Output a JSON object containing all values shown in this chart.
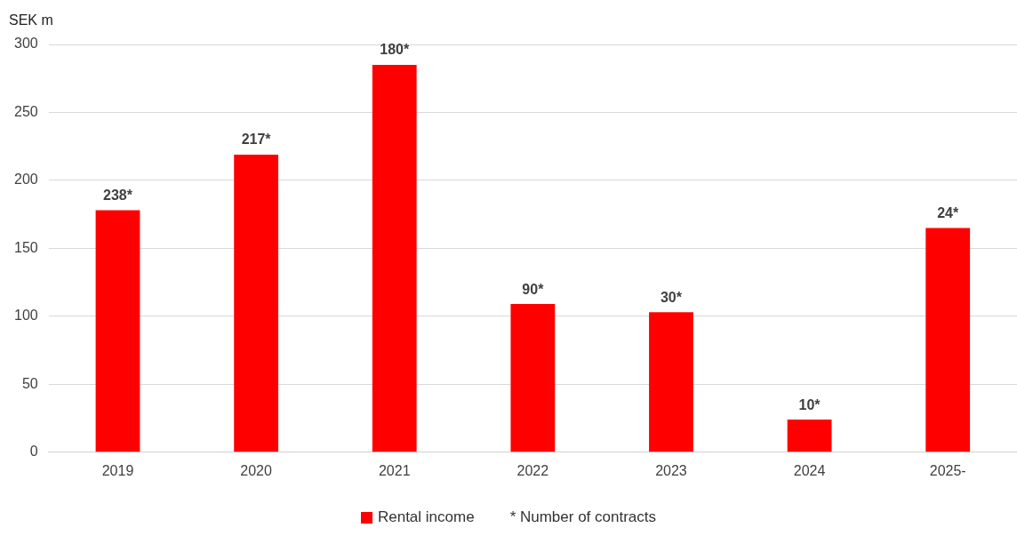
{
  "chart_data": {
    "type": "bar",
    "ylabel": "SEK m",
    "categories": [
      "2019",
      "2020",
      "2021",
      "2022",
      "2023",
      "2024",
      "2025-"
    ],
    "series": [
      {
        "name": "Rental income",
        "color": "#ff0000",
        "values": [
          178,
          219,
          285,
          109,
          103,
          24,
          165
        ]
      }
    ],
    "ylim": [
      0,
      300
    ],
    "yticks": [
      0,
      50,
      100,
      150,
      200,
      250,
      300
    ],
    "grid": "y",
    "legend": "bottom",
    "annotations": [
      {
        "text": "238*",
        "x": "2019",
        "y": 178
      },
      {
        "text": "217*",
        "x": "2020",
        "y": 219
      },
      {
        "text": "180*",
        "x": "2021",
        "y": 285
      },
      {
        "text": "90*",
        "x": "2022",
        "y": 109
      },
      {
        "text": "30*",
        "x": "2023",
        "y": 103
      },
      {
        "text": "10*",
        "x": "2024",
        "y": 24
      },
      {
        "text": "24*",
        "x": "2025-",
        "y": 165
      },
      "* Number of contracts"
    ]
  }
}
